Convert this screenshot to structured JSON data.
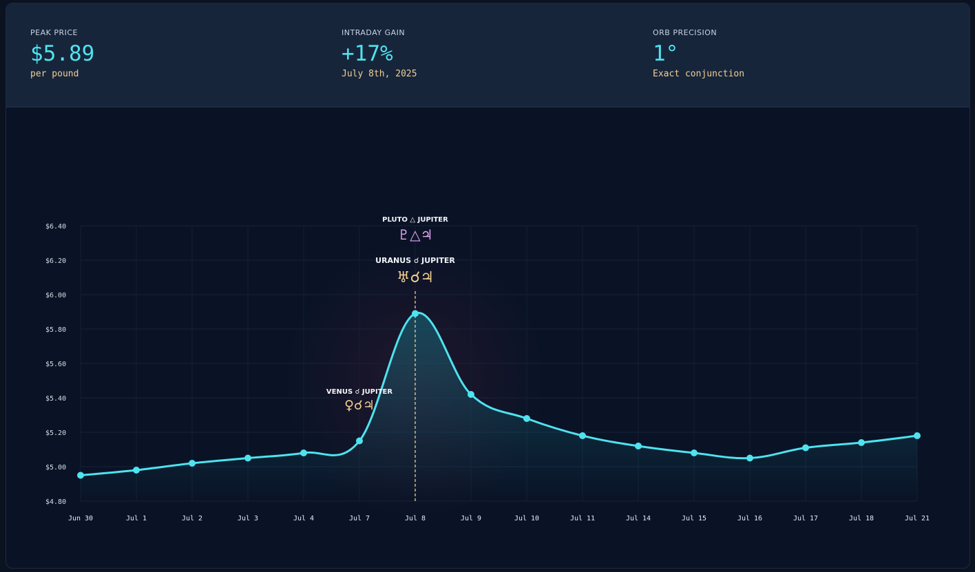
{
  "stats": [
    {
      "label": "PEAK PRICE",
      "value": "$5.89",
      "sub": "per pound"
    },
    {
      "label": "INTRADAY GAIN",
      "value": "+17%",
      "sub": "July 8th, 2025"
    },
    {
      "label": "ORB PRECISION",
      "value": "1°",
      "sub": "Exact conjunction"
    }
  ],
  "colors": {
    "line": "#4ee3ef",
    "marker": "#f1cf92",
    "pluto": "#e7a6f2",
    "aspect": "#f1cf92"
  },
  "chart_data": {
    "type": "line",
    "categories": [
      "Jun 30",
      "Jul 1",
      "Jul 2",
      "Jul 3",
      "Jul 4",
      "Jul 7",
      "Jul 8",
      "Jul 9",
      "Jul 10",
      "Jul 11",
      "Jul 14",
      "Jul 15",
      "Jul 16",
      "Jul 17",
      "Jul 18",
      "Jul 21"
    ],
    "values": [
      4.95,
      4.98,
      5.02,
      5.05,
      5.08,
      5.15,
      5.89,
      5.42,
      5.28,
      5.18,
      5.12,
      5.08,
      5.05,
      5.11,
      5.14,
      5.18
    ],
    "ylim": [
      4.8,
      6.4
    ],
    "yticks": [
      "$4.80",
      "$5.00",
      "$5.20",
      "$5.40",
      "$5.60",
      "$5.80",
      "$6.00",
      "$6.20",
      "$6.40"
    ],
    "ytick_values": [
      4.8,
      5.0,
      5.2,
      5.4,
      5.6,
      5.8,
      6.0,
      6.2,
      6.4
    ],
    "marker_category": "Jul 8",
    "annotations": [
      {
        "category": "Jul 7",
        "at": 5.4,
        "label": "VENUS ☌ JUPITER",
        "glyph": "♀☌♃",
        "size": "small",
        "glyph_color": "aspect"
      },
      {
        "category": "Jul 8",
        "at": 6.16,
        "label": "URANUS ☌ JUPITER",
        "glyph": "♅☌♃",
        "size": "large",
        "glyph_color": "aspect"
      },
      {
        "category": "Jul 8",
        "at": 6.4,
        "label": "PLUTO △ JUPITER",
        "glyph": "♇△♃",
        "size": "medium",
        "glyph_color": "pluto"
      }
    ]
  }
}
